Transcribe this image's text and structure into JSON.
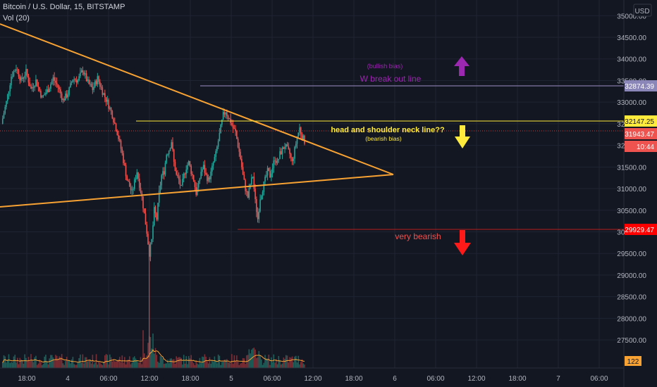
{
  "header": {
    "symbol": "Bitcoin / U.S. Dollar, 15, BITSTAMP",
    "volume_indicator": "Vol (20)"
  },
  "colors": {
    "background": "#131722",
    "grid": "#1f2433",
    "axis_text": "#b2b5be",
    "candle_up": "#26a69a",
    "candle_down": "#ef5350",
    "trendline": "#f7a233",
    "purple": "#9c27b0",
    "yellow": "#ffeb3b",
    "red": "#ff0000",
    "volume_ma": "#f7a233"
  },
  "chart_data": {
    "type": "candlestick",
    "title": "Bitcoin / U.S. Dollar, 15, BITSTAMP",
    "currency": "USD",
    "ylim": [
      26850,
      35200
    ],
    "y_ticks": [
      27500,
      28000,
      28500,
      29000,
      29500,
      30000,
      30500,
      31000,
      31500,
      32000,
      32500,
      33000,
      33500,
      34000,
      34500,
      35000
    ],
    "y_tick_labels": [
      "27500.00",
      "28000.00",
      "28500.00",
      "29000.00",
      "29500.00",
      "30000.00",
      "30500.00",
      "31000.00",
      "31500.00",
      "32000.00",
      "32500.00",
      "33000.00",
      "33500.00",
      "34000.00",
      "34500.00",
      "35000.00"
    ],
    "x_tick_labels": [
      "18:00",
      "4",
      "06:00",
      "12:00",
      "18:00",
      "5",
      "06:00",
      "12:00",
      "18:00",
      "6",
      "06:00",
      "12:00",
      "18:00",
      "7",
      "06:00"
    ],
    "grid": true,
    "price_path": [
      [
        0,
        32500
      ],
      [
        4,
        33000
      ],
      [
        8,
        33600
      ],
      [
        12,
        33800
      ],
      [
        16,
        33500
      ],
      [
        20,
        33700
      ],
      [
        24,
        33300
      ],
      [
        28,
        33500
      ],
      [
        33,
        33100
      ],
      [
        38,
        33300
      ],
      [
        42,
        33550
      ],
      [
        46,
        33350
      ],
      [
        50,
        33050
      ],
      [
        54,
        33200
      ],
      [
        58,
        33550
      ],
      [
        62,
        33500
      ],
      [
        66,
        33750
      ],
      [
        70,
        33450
      ],
      [
        74,
        33300
      ],
      [
        78,
        33550
      ],
      [
        82,
        33250
      ],
      [
        86,
        33000
      ],
      [
        90,
        32700
      ],
      [
        94,
        32300
      ],
      [
        98,
        31800
      ],
      [
        102,
        31200
      ],
      [
        106,
        30900
      ],
      [
        110,
        31400
      ],
      [
        114,
        30800
      ],
      [
        118,
        30000
      ],
      [
        120,
        29500
      ],
      [
        122,
        29800
      ],
      [
        124,
        30500
      ],
      [
        126,
        30300
      ],
      [
        128,
        30900
      ],
      [
        130,
        31300
      ],
      [
        132,
        31400
      ],
      [
        134,
        31800
      ],
      [
        136,
        31900
      ],
      [
        138,
        32100
      ],
      [
        140,
        31600
      ],
      [
        142,
        31300
      ],
      [
        144,
        31200
      ],
      [
        146,
        31000
      ],
      [
        148,
        31300
      ],
      [
        150,
        31500
      ],
      [
        152,
        31600
      ],
      [
        154,
        31400
      ],
      [
        156,
        31200
      ],
      [
        158,
        30900
      ],
      [
        160,
        31100
      ],
      [
        162,
        31400
      ],
      [
        164,
        31500
      ],
      [
        166,
        31300
      ],
      [
        168,
        31200
      ],
      [
        170,
        31350
      ],
      [
        172,
        31600
      ],
      [
        174,
        31800
      ],
      [
        176,
        32100
      ],
      [
        178,
        32400
      ],
      [
        180,
        32700
      ],
      [
        182,
        32800
      ],
      [
        184,
        32650
      ],
      [
        186,
        32550
      ],
      [
        188,
        32400
      ],
      [
        190,
        32300
      ],
      [
        192,
        32000
      ],
      [
        194,
        31700
      ],
      [
        196,
        31300
      ],
      [
        198,
        31000
      ],
      [
        200,
        30800
      ],
      [
        202,
        31100
      ],
      [
        204,
        31300
      ],
      [
        206,
        30700
      ],
      [
        208,
        30300
      ],
      [
        210,
        30800
      ],
      [
        212,
        31000
      ],
      [
        214,
        31200
      ],
      [
        216,
        31400
      ],
      [
        218,
        31300
      ],
      [
        220,
        31500
      ],
      [
        222,
        31700
      ],
      [
        224,
        31600
      ],
      [
        226,
        31800
      ],
      [
        228,
        31900
      ],
      [
        230,
        32000
      ],
      [
        232,
        31900
      ],
      [
        234,
        31800
      ],
      [
        236,
        31600
      ],
      [
        238,
        31900
      ],
      [
        240,
        32200
      ],
      [
        242,
        32400
      ],
      [
        244,
        32200
      ],
      [
        246,
        32100
      ]
    ],
    "annotations": [
      {
        "label": "(bullish bias)"
      },
      {
        "label": "W break out line"
      },
      {
        "label": "head and shoulder neck line??"
      },
      {
        "label": "(bearish bias)"
      },
      {
        "label": "very bearish"
      }
    ],
    "horizontal_levels": [
      {
        "price": 32874.39,
        "label": "32874.39",
        "color": "#9c8cc8"
      },
      {
        "price": 32147.25,
        "label": "32147.25",
        "color": "#ffeb3b"
      },
      {
        "price": 31943.47,
        "label": "31943.47",
        "color": "#ef5350"
      },
      {
        "price": 29929.47,
        "label": "29929.47",
        "color": "#ff0000"
      }
    ],
    "current_time_label": "10:44",
    "volume_label": "122"
  }
}
